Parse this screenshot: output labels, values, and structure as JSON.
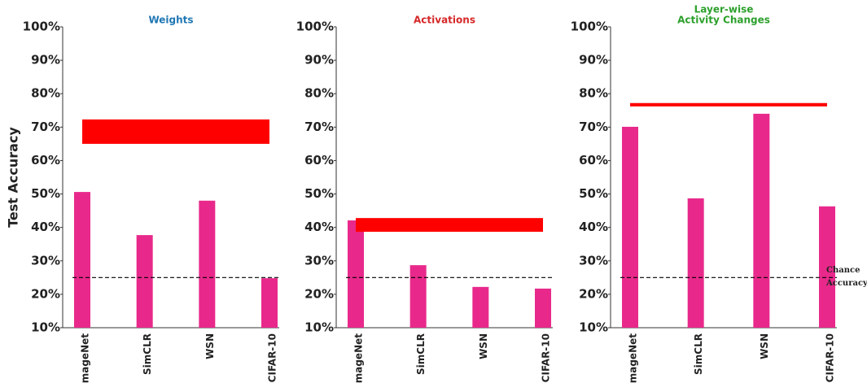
{
  "chart_data": [
    {
      "type": "bar",
      "title": [
        "Weights"
      ],
      "title_color": "#1f77b4",
      "ylabel": "Test Accuracy",
      "categories": [
        "ImageNet",
        "SimCLR",
        "WSN",
        "CIFAR-10"
      ],
      "values": [
        50.6,
        37.7,
        48.0,
        24.8
      ],
      "color": "#e8298b",
      "reference_range": [
        65.0,
        72.3
      ],
      "reference_color": "#ff0000",
      "chance_level": 25,
      "ylim": [
        10,
        100
      ],
      "yticks": [
        {
          "value": 10,
          "label": "10%"
        },
        {
          "value": 20,
          "label": "20%"
        },
        {
          "value": 30,
          "label": "30%"
        },
        {
          "value": 40,
          "label": "40%"
        },
        {
          "value": 50,
          "label": "50%"
        },
        {
          "value": 60,
          "label": "60%"
        },
        {
          "value": 70,
          "label": "70%"
        },
        {
          "value": 80,
          "label": "80%"
        },
        {
          "value": 90,
          "label": "90%"
        },
        {
          "value": 100,
          "label": "100%"
        }
      ]
    },
    {
      "type": "bar",
      "title": [
        "Activations"
      ],
      "title_color": "#d62728",
      "categories": [
        "ImageNet",
        "SimCLR",
        "WSN",
        "CIFAR-10"
      ],
      "values": [
        42.1,
        28.7,
        22.2,
        21.7
      ],
      "color": "#e8298b",
      "reference_range": [
        38.7,
        42.8
      ],
      "reference_color": "#ff0000",
      "chance_level": 25,
      "ylim": [
        10,
        100
      ],
      "yticks": [
        {
          "value": 10,
          "label": "10%"
        },
        {
          "value": 20,
          "label": "20%"
        },
        {
          "value": 30,
          "label": "30%"
        },
        {
          "value": 40,
          "label": "40%"
        },
        {
          "value": 50,
          "label": "50%"
        },
        {
          "value": 60,
          "label": "60%"
        },
        {
          "value": 70,
          "label": "70%"
        },
        {
          "value": 80,
          "label": "80%"
        },
        {
          "value": 90,
          "label": "90%"
        },
        {
          "value": 100,
          "label": "100%"
        }
      ]
    },
    {
      "type": "bar",
      "title": [
        "Layer-wise",
        "Activity Changes"
      ],
      "title_color": "#2ca02c",
      "categories": [
        "ImageNet",
        "SimCLR",
        "WSN",
        "CIFAR-10"
      ],
      "values": [
        70.1,
        48.7,
        74.0,
        46.3
      ],
      "color": "#e8298b",
      "reference_range": [
        76.2,
        77.2
      ],
      "reference_color": "#ff0000",
      "chance_level": 25,
      "chance_annotation": [
        "Chance",
        "Accuracy"
      ],
      "ylim": [
        10,
        100
      ],
      "yticks": [
        {
          "value": 10,
          "label": "10%"
        },
        {
          "value": 20,
          "label": "20%"
        },
        {
          "value": 30,
          "label": "30%"
        },
        {
          "value": 40,
          "label": "40%"
        },
        {
          "value": 50,
          "label": "50%"
        },
        {
          "value": 60,
          "label": "60%"
        },
        {
          "value": 70,
          "label": "70%"
        },
        {
          "value": 80,
          "label": "80%"
        },
        {
          "value": 90,
          "label": "90%"
        },
        {
          "value": 100,
          "label": "100%"
        }
      ]
    }
  ]
}
